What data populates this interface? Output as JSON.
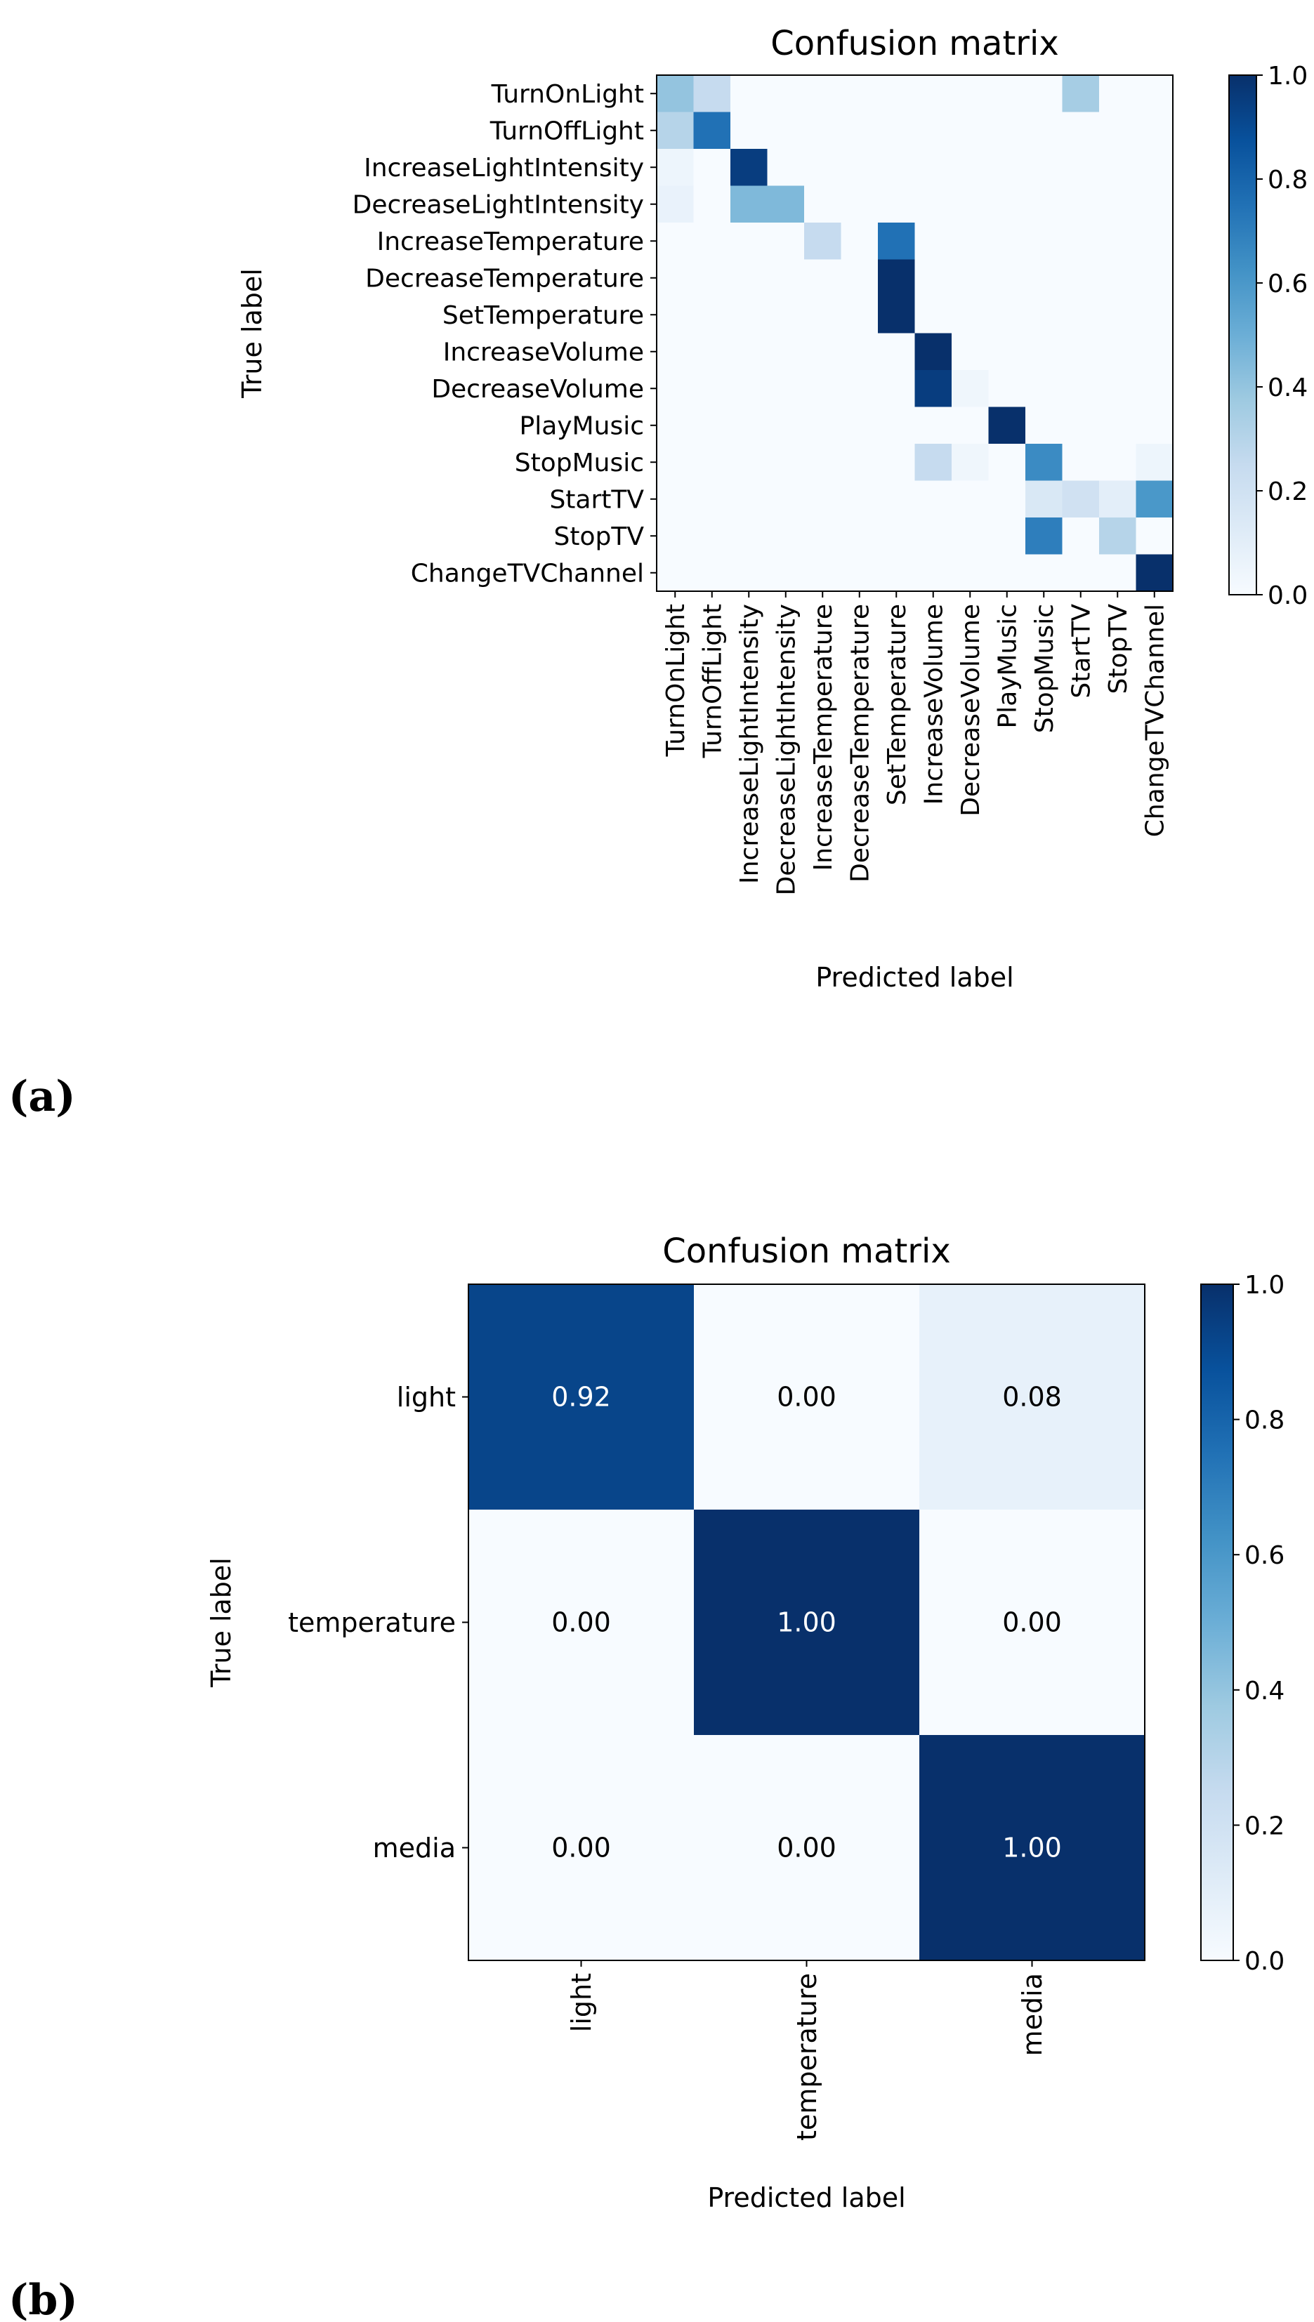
{
  "chart_data": [
    {
      "type": "heatmap",
      "panel_label": "(a)",
      "title": "Confusion matrix",
      "xlabel": "Predicted label",
      "ylabel": "True label",
      "row_labels": [
        "TurnOnLight",
        "TurnOffLight",
        "IncreaseLightIntensity",
        "DecreaseLightIntensity",
        "IncreaseTemperature",
        "DecreaseTemperature",
        "SetTemperature",
        "IncreaseVolume",
        "DecreaseVolume",
        "PlayMusic",
        "StopMusic",
        "StartTV",
        "StopTV",
        "ChangeTVChannel"
      ],
      "col_labels": [
        "TurnOnLight",
        "TurnOffLight",
        "IncreaseLightIntensity",
        "DecreaseLightIntensity",
        "IncreaseTemperature",
        "DecreaseTemperature",
        "SetTemperature",
        "IncreaseVolume",
        "DecreaseVolume",
        "PlayMusic",
        "StopMusic",
        "StartTV",
        "StopTV",
        "ChangeTVChannel"
      ],
      "values": [
        [
          0.4,
          0.25,
          0,
          0,
          0,
          0,
          0,
          0,
          0,
          0,
          0,
          0.35,
          0,
          0
        ],
        [
          0.3,
          0.75,
          0,
          0,
          0,
          0,
          0,
          0,
          0,
          0,
          0,
          0,
          0,
          0
        ],
        [
          0.05,
          0,
          0.95,
          0,
          0,
          0,
          0,
          0,
          0,
          0,
          0,
          0,
          0,
          0
        ],
        [
          0.07,
          0,
          0.45,
          0.45,
          0,
          0,
          0,
          0,
          0,
          0,
          0,
          0,
          0,
          0
        ],
        [
          0,
          0,
          0,
          0,
          0.25,
          0,
          0.75,
          0,
          0,
          0,
          0,
          0,
          0,
          0
        ],
        [
          0,
          0,
          0,
          0,
          0,
          0,
          1.0,
          0,
          0,
          0,
          0,
          0,
          0,
          0
        ],
        [
          0,
          0,
          0,
          0,
          0,
          0,
          1.0,
          0,
          0,
          0,
          0,
          0,
          0,
          0
        ],
        [
          0,
          0,
          0,
          0,
          0,
          0,
          0,
          1.0,
          0,
          0,
          0,
          0,
          0,
          0
        ],
        [
          0,
          0,
          0,
          0,
          0,
          0,
          0,
          0.95,
          0.04,
          0,
          0,
          0,
          0,
          0
        ],
        [
          0,
          0,
          0,
          0,
          0,
          0,
          0,
          0,
          0,
          1.0,
          0,
          0,
          0,
          0
        ],
        [
          0,
          0,
          0,
          0,
          0,
          0,
          0,
          0.25,
          0.04,
          0,
          0.65,
          0,
          0,
          0.05
        ],
        [
          0,
          0,
          0,
          0,
          0,
          0,
          0,
          0,
          0,
          0,
          0.15,
          0.2,
          0.1,
          0.6
        ],
        [
          0,
          0,
          0,
          0,
          0,
          0,
          0,
          0,
          0,
          0,
          0.7,
          0,
          0.3,
          0
        ],
        [
          0,
          0,
          0,
          0,
          0,
          0,
          0,
          0,
          0,
          0,
          0,
          0,
          0,
          1.0
        ]
      ],
      "colorbar": {
        "range": [
          0,
          1
        ],
        "ticks": [
          "0.0",
          "0.2",
          "0.4",
          "0.6",
          "0.8",
          "1.0"
        ]
      },
      "colormap": "Blues"
    },
    {
      "type": "heatmap",
      "panel_label": "(b)",
      "title": "Confusion matrix",
      "xlabel": "Predicted label",
      "ylabel": "True label",
      "row_labels": [
        "light",
        "temperature",
        "media"
      ],
      "col_labels": [
        "light",
        "temperature",
        "media"
      ],
      "values": [
        [
          0.92,
          0.0,
          0.08
        ],
        [
          0.0,
          1.0,
          0.0
        ],
        [
          0.0,
          0.0,
          1.0
        ]
      ],
      "cell_text": [
        [
          "0.92",
          "0.00",
          "0.08"
        ],
        [
          "0.00",
          "1.00",
          "0.00"
        ],
        [
          "0.00",
          "0.00",
          "1.00"
        ]
      ],
      "colorbar": {
        "range": [
          0,
          1
        ],
        "ticks": [
          "0.0",
          "0.2",
          "0.4",
          "0.6",
          "0.8",
          "1.0"
        ]
      },
      "colormap": "Blues"
    }
  ]
}
